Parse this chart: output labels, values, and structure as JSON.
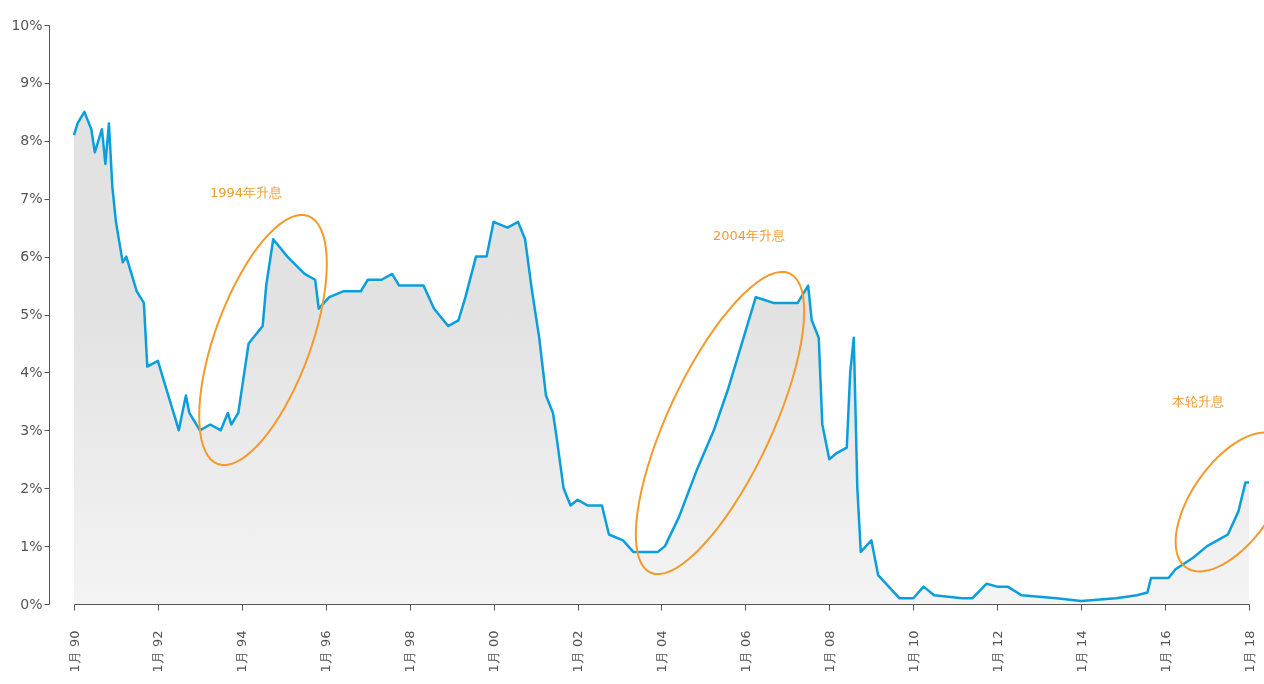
{
  "chart_data": {
    "type": "area",
    "x": [
      "1990-01",
      "1990-02",
      "1990-04",
      "1990-06",
      "1990-07",
      "1990-09",
      "1990-10",
      "1990-11",
      "1990-12",
      "1991-01",
      "1991-03",
      "1991-04",
      "1991-07",
      "1991-09",
      "1991-10",
      "1992-01",
      "1992-03",
      "1992-06",
      "1992-07",
      "1992-09",
      "1992-10",
      "1993-01",
      "1993-04",
      "1993-07",
      "1993-09",
      "1993-10",
      "1993-11",
      "1993-12",
      "1994-03",
      "1994-07",
      "1994-08",
      "1994-10",
      "1995-02",
      "1995-07",
      "1995-10",
      "1995-11",
      "1996-02",
      "1996-06",
      "1996-11",
      "1997-01",
      "1997-05",
      "1997-08",
      "1997-10",
      "1998-05",
      "1998-08",
      "1998-12",
      "1999-03",
      "1999-05",
      "1999-08",
      "1999-11",
      "2000-01",
      "2000-05",
      "2000-08",
      "2000-10",
      "2000-12",
      "2001-02",
      "2001-04",
      "2001-06",
      "2001-07",
      "2001-09",
      "2001-11",
      "2002-01",
      "2002-04",
      "2002-08",
      "2002-10",
      "2003-02",
      "2003-05",
      "2003-12",
      "2004-02",
      "2004-06",
      "2004-11",
      "2005-04",
      "2005-08",
      "2005-12",
      "2006-04",
      "2006-09",
      "2007-04",
      "2007-07",
      "2007-08",
      "2007-10",
      "2007-11",
      "2008-01",
      "2008-03",
      "2008-06",
      "2008-07",
      "2008-08",
      "2008-09",
      "2008-10",
      "2009-01",
      "2009-03",
      "2009-06",
      "2009-09",
      "2010-01",
      "2010-04",
      "2010-07",
      "2011-03",
      "2011-06",
      "2011-10",
      "2012-01",
      "2012-04",
      "2012-08",
      "2013-06",
      "2014-01",
      "2014-11",
      "2015-05",
      "2015-08",
      "2015-09",
      "2016-02",
      "2016-04",
      "2016-09",
      "2017-01",
      "2017-04",
      "2017-07",
      "2017-10",
      "2017-12",
      "2018-01"
    ],
    "series": [
      {
        "color": "#0a9fdc",
        "values": [
          8.1,
          8.3,
          8.5,
          8.2,
          7.8,
          8.2,
          7.6,
          8.3,
          7.2,
          6.6,
          5.9,
          6.0,
          5.4,
          5.2,
          4.1,
          4.2,
          3.8,
          3.2,
          3.0,
          3.6,
          3.3,
          3.0,
          3.1,
          3.0,
          3.3,
          3.1,
          3.2,
          3.3,
          4.5,
          4.8,
          5.5,
          6.3,
          6.0,
          5.7,
          5.6,
          5.1,
          5.3,
          5.4,
          5.4,
          5.6,
          5.6,
          5.7,
          5.5,
          5.5,
          5.1,
          4.8,
          4.9,
          5.3,
          6.0,
          6.0,
          6.6,
          6.5,
          6.6,
          6.3,
          5.4,
          4.6,
          3.6,
          3.3,
          2.9,
          2.0,
          1.7,
          1.8,
          1.7,
          1.7,
          1.2,
          1.1,
          0.9,
          0.9,
          1.0,
          1.5,
          2.3,
          3.0,
          3.7,
          4.5,
          5.3,
          5.2,
          5.2,
          5.5,
          4.9,
          4.6,
          3.1,
          2.5,
          2.6,
          2.7,
          4.0,
          4.6,
          2.0,
          0.9,
          1.1,
          0.5,
          0.3,
          0.1,
          0.1,
          0.3,
          0.15,
          0.1,
          0.1,
          0.35,
          0.3,
          0.3,
          0.15,
          0.1,
          0.05,
          0.1,
          0.15,
          0.2,
          0.45,
          0.45,
          0.6,
          0.8,
          1.0,
          1.1,
          1.2,
          1.6,
          2.1,
          2.1
        ]
      }
    ],
    "xlim": [
      "1990-01",
      "2018-01"
    ],
    "xticks": [
      {
        "value": "1990-01",
        "label": "1月 90"
      },
      {
        "value": "1992-01",
        "label": "1月 92"
      },
      {
        "value": "1994-01",
        "label": "1月 94"
      },
      {
        "value": "1996-01",
        "label": "1月 96"
      },
      {
        "value": "1998-01",
        "label": "1月 98"
      },
      {
        "value": "2000-01",
        "label": "1月 00"
      },
      {
        "value": "2002-01",
        "label": "1月 02"
      },
      {
        "value": "2004-01",
        "label": "1月 04"
      },
      {
        "value": "2006-01",
        "label": "1月 06"
      },
      {
        "value": "2008-01",
        "label": "1月 08"
      },
      {
        "value": "2010-01",
        "label": "1月 10"
      },
      {
        "value": "2012-01",
        "label": "1月 12"
      },
      {
        "value": "2014-01",
        "label": "1月 14"
      },
      {
        "value": "2016-01",
        "label": "1月 16"
      },
      {
        "value": "2018-01",
        "label": "1月 18"
      }
    ],
    "ylim": [
      0,
      10
    ],
    "yticks": [
      {
        "value": 0,
        "label": "0%"
      },
      {
        "value": 1,
        "label": "1%"
      },
      {
        "value": 2,
        "label": "2%"
      },
      {
        "value": 3,
        "label": "3%"
      },
      {
        "value": 4,
        "label": "4%"
      },
      {
        "value": 5,
        "label": "5%"
      },
      {
        "value": 6,
        "label": "6%"
      },
      {
        "value": 7,
        "label": "7%"
      },
      {
        "value": 8,
        "label": "8%"
      },
      {
        "value": 9,
        "label": "9%"
      },
      {
        "value": 10,
        "label": "10%"
      }
    ],
    "annotations": [
      "1994年升息",
      "2004年升息",
      "本轮升息"
    ],
    "grid": false
  }
}
